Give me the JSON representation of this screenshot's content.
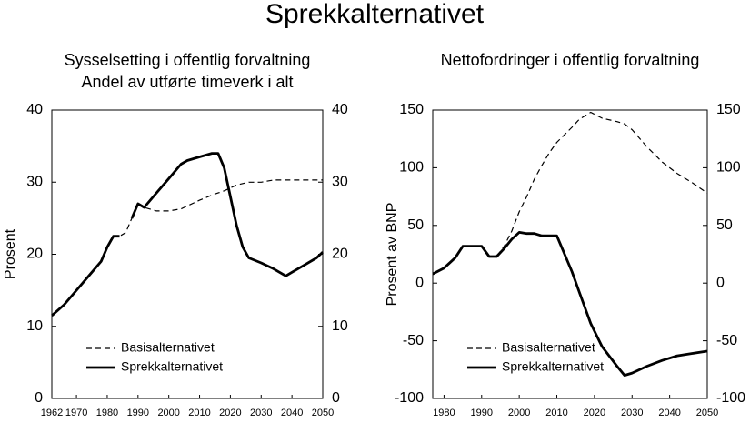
{
  "title": "Sprekkalternativet",
  "chart_data": [
    {
      "type": "line",
      "title": "Sysselsetting i offentlig forvaltning",
      "subtitle": "Andel av utførte timeverk i alt",
      "ylabel": "Prosent",
      "x": [
        1962,
        1966,
        1970,
        1974,
        1978,
        1980,
        1982,
        1984,
        1986,
        1988,
        1990,
        1992,
        1996,
        2000,
        2004,
        2006,
        2010,
        2014,
        2016,
        2018,
        2020,
        2022,
        2024,
        2026,
        2030,
        2034,
        2038,
        2040,
        2044,
        2048,
        2050
      ],
      "xlim": [
        1962,
        2050
      ],
      "xticks": [
        1962,
        1970,
        1980,
        1990,
        2000,
        2010,
        2020,
        2030,
        2040,
        2050
      ],
      "ylim": [
        0,
        40
      ],
      "yticks": [
        0,
        10,
        20,
        30,
        40
      ],
      "y2lim": [
        0,
        40
      ],
      "y2ticks": [
        0,
        10,
        20,
        30,
        40
      ],
      "grid": false,
      "legend": "lower left",
      "series": [
        {
          "name": "Basisalternativet",
          "color": "#000000",
          "style": "dashed",
          "line_width": 1.2,
          "values": [
            11.5,
            13,
            15,
            17,
            19,
            21,
            22.5,
            22.5,
            23,
            25,
            27,
            26.5,
            26,
            26,
            26.3,
            26.7,
            27.5,
            28.2,
            28.5,
            28.8,
            29.2,
            29.6,
            29.8,
            30,
            30,
            30.3,
            30.3,
            30.3,
            30.3,
            30.3,
            30.3
          ]
        },
        {
          "name": "Sprekkalternativet",
          "color": "#000000",
          "style": "solid",
          "line_width": 2.8,
          "values": [
            11.5,
            13,
            15,
            17,
            19,
            21,
            22.5,
            22.5,
            null,
            25,
            27,
            26.5,
            28.5,
            30.5,
            32.5,
            33,
            33.5,
            34,
            34,
            32,
            28,
            24,
            21,
            19.5,
            18.8,
            18,
            17,
            17.5,
            18.5,
            19.5,
            20.3
          ]
        }
      ]
    },
    {
      "type": "line",
      "title": "Nettofordringer i offentlig forvaltning",
      "ylabel": "Prosent av BNP",
      "x": [
        1977,
        1980,
        1983,
        1985,
        1988,
        1990,
        1992,
        1994,
        1996,
        1998,
        2000,
        2002,
        2004,
        2006,
        2008,
        2010,
        2014,
        2016,
        2019,
        2022,
        2026,
        2028,
        2030,
        2034,
        2038,
        2042,
        2046,
        2050
      ],
      "xlim": [
        1977,
        2050
      ],
      "xticks": [
        1980,
        1990,
        2000,
        2010,
        2020,
        2030,
        2040,
        2050
      ],
      "ylim": [
        -100,
        150
      ],
      "yticks": [
        -100,
        -50,
        0,
        50,
        100,
        150
      ],
      "y2lim": [
        -100,
        150
      ],
      "y2ticks": [
        -100,
        -50,
        0,
        50,
        100,
        150
      ],
      "grid": false,
      "legend": "lower left",
      "series": [
        {
          "name": "Basisalternativet",
          "color": "#000000",
          "style": "dashed",
          "line_width": 1.2,
          "values": [
            8,
            13,
            22,
            32,
            32,
            32,
            23,
            23,
            32,
            45,
            62,
            75,
            90,
            102,
            113,
            122,
            135,
            142,
            148,
            143,
            140,
            138,
            133,
            118,
            105,
            95,
            87,
            78
          ]
        },
        {
          "name": "Sprekkalternativet",
          "color": "#000000",
          "style": "solid",
          "line_width": 2.8,
          "values": [
            8,
            13,
            22,
            32,
            32,
            32,
            23,
            23,
            30,
            38,
            44,
            43,
            43,
            41,
            41,
            41,
            10,
            -8,
            -35,
            -55,
            -72,
            -80,
            -78,
            -72,
            -67,
            -63,
            -61,
            -59
          ]
        }
      ]
    }
  ]
}
